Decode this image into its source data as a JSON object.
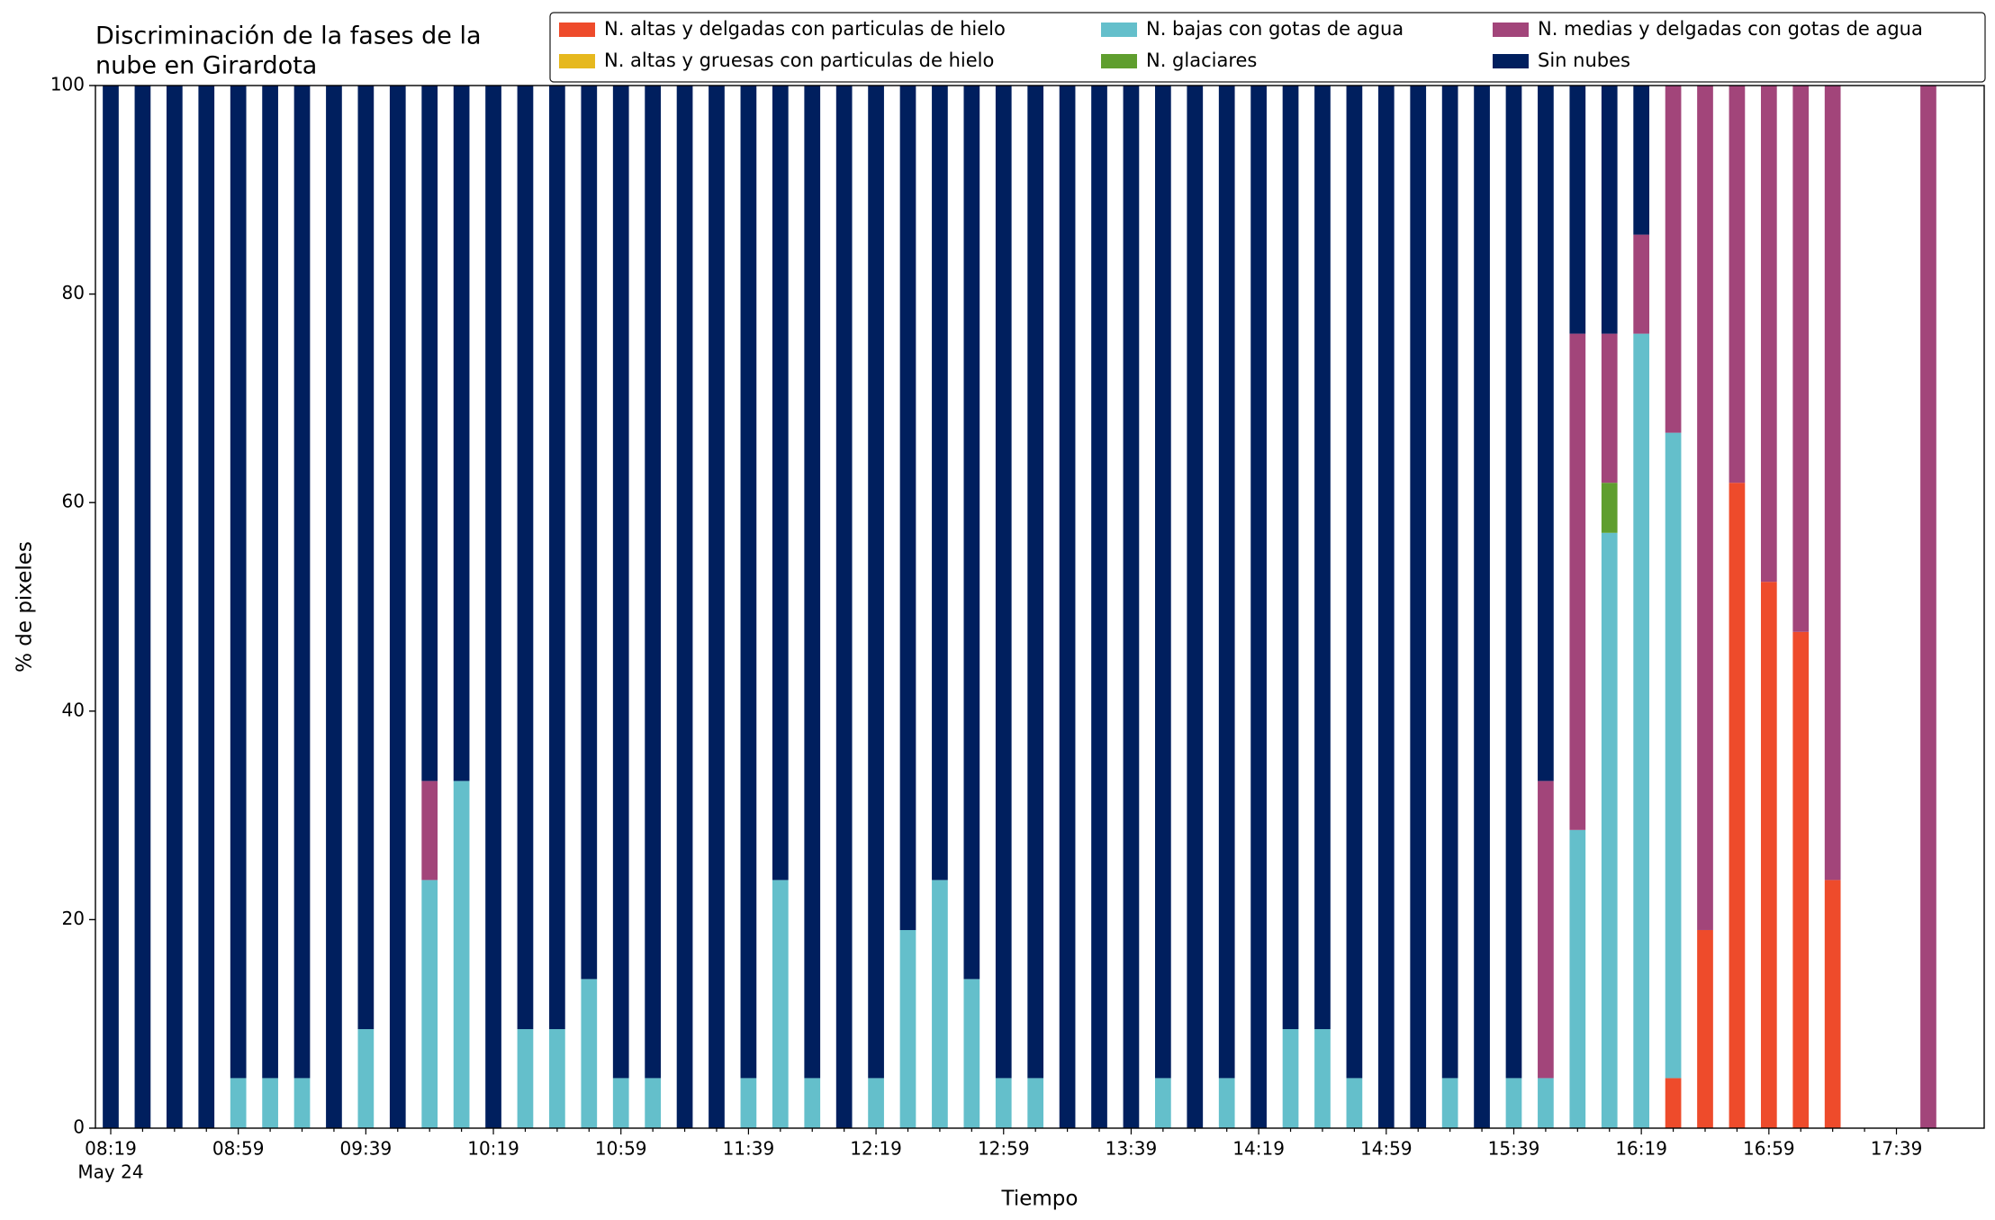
{
  "chart_data": {
    "type": "stacked_bar",
    "title": [
      "Discriminación de la fases de la",
      "nube en Girardota"
    ],
    "xlabel": "Tiempo",
    "ylabel": "% de pixeles",
    "date_label": "May 24",
    "categories": [
      "08:19",
      null,
      null,
      null,
      "08:59",
      null,
      null,
      null,
      "09:39",
      null,
      null,
      null,
      "10:19",
      null,
      null,
      null,
      "10:59",
      null,
      null,
      null,
      "11:39",
      null,
      null,
      null,
      "12:19",
      null,
      null,
      null,
      "12:59",
      null,
      null,
      null,
      "13:39",
      null,
      null,
      null,
      "14:19",
      null,
      null,
      null,
      "14:59",
      null,
      null,
      null,
      "15:39",
      null,
      null,
      null,
      "16:19",
      null,
      null,
      null,
      "16:59",
      null,
      null,
      null,
      "17:39",
      null
    ],
    "ylim": [
      0,
      100
    ],
    "yticks": [
      0,
      20,
      40,
      60,
      80,
      100
    ],
    "series": [
      {
        "name": "N. altas y delgadas con particulas de hielo",
        "color": "#ee4b2b",
        "values": [
          0,
          0,
          0,
          0,
          0,
          0,
          0,
          0,
          0,
          0,
          0,
          0,
          0,
          0,
          0,
          0,
          0,
          0,
          0,
          0,
          0,
          0,
          0,
          0,
          0,
          0,
          0,
          0,
          0,
          0,
          0,
          0,
          0,
          0,
          0,
          0,
          0,
          0,
          0,
          0,
          0,
          0,
          0,
          0,
          0,
          0,
          0,
          0,
          0,
          4.8,
          19.0,
          61.9,
          52.4,
          47.6,
          23.8,
          0,
          0,
          0
        ]
      },
      {
        "name": "N. altas y gruesas con particulas de hielo",
        "color": "#e6b81e",
        "values": [
          0,
          0,
          0,
          0,
          0,
          0,
          0,
          0,
          0,
          0,
          0,
          0,
          0,
          0,
          0,
          0,
          0,
          0,
          0,
          0,
          0,
          0,
          0,
          0,
          0,
          0,
          0,
          0,
          0,
          0,
          0,
          0,
          0,
          0,
          0,
          0,
          0,
          0,
          0,
          0,
          0,
          0,
          0,
          0,
          0,
          0,
          0,
          0,
          0,
          0,
          0,
          0,
          0,
          0,
          0,
          0,
          0,
          0
        ]
      },
      {
        "name": "N. bajas con gotas de agua",
        "color": "#64bfcb",
        "values": [
          0,
          0,
          0,
          0,
          4.8,
          4.8,
          4.8,
          0,
          9.5,
          0,
          23.8,
          33.3,
          0,
          9.5,
          9.5,
          14.3,
          4.8,
          4.8,
          0,
          0,
          4.8,
          23.8,
          4.8,
          0,
          4.8,
          19.0,
          23.8,
          14.3,
          4.8,
          4.8,
          0,
          0,
          0,
          4.8,
          0,
          4.8,
          0,
          9.5,
          9.5,
          4.8,
          0,
          0,
          4.8,
          0,
          4.8,
          4.8,
          28.6,
          57.1,
          76.2,
          61.9,
          0,
          0,
          0,
          0,
          0,
          0,
          0,
          0
        ]
      },
      {
        "name": "N. glaciares",
        "color": "#5f9e2e",
        "values": [
          0,
          0,
          0,
          0,
          0,
          0,
          0,
          0,
          0,
          0,
          0,
          0,
          0,
          0,
          0,
          0,
          0,
          0,
          0,
          0,
          0,
          0,
          0,
          0,
          0,
          0,
          0,
          0,
          0,
          0,
          0,
          0,
          0,
          0,
          0,
          0,
          0,
          0,
          0,
          0,
          0,
          0,
          0,
          0,
          0,
          0,
          0,
          4.8,
          0,
          0,
          0,
          0,
          0,
          0,
          0,
          0,
          0,
          0
        ]
      },
      {
        "name": "N. medias y delgadas con gotas de agua",
        "color": "#a2457a",
        "values": [
          0,
          0,
          0,
          0,
          0,
          0,
          0,
          0,
          0,
          0,
          9.5,
          0,
          0,
          0,
          0,
          0,
          0,
          0,
          0,
          0,
          0,
          0,
          0,
          0,
          0,
          0,
          0,
          0,
          0,
          0,
          0,
          0,
          0,
          0,
          0,
          0,
          0,
          0,
          0,
          0,
          0,
          0,
          0,
          0,
          0,
          28.5,
          47.6,
          14.3,
          9.5,
          33.3,
          81.0,
          38.1,
          47.6,
          52.4,
          76.2,
          0,
          0,
          100
        ]
      },
      {
        "name": "Sin nubes",
        "color": "#001f5e",
        "values": [
          100,
          100,
          100,
          100,
          95.2,
          95.2,
          95.2,
          100,
          90.5,
          100,
          66.7,
          66.7,
          100,
          90.5,
          90.5,
          85.7,
          95.2,
          95.2,
          100,
          100,
          95.2,
          76.2,
          95.2,
          100,
          95.2,
          81.0,
          76.2,
          85.7,
          95.2,
          95.2,
          100,
          100,
          100,
          95.2,
          100,
          95.2,
          100,
          90.5,
          90.5,
          95.2,
          100,
          100,
          95.2,
          100,
          95.2,
          66.7,
          23.8,
          23.8,
          14.3,
          0,
          0,
          0,
          0,
          0,
          0,
          0,
          0,
          0
        ]
      }
    ]
  }
}
